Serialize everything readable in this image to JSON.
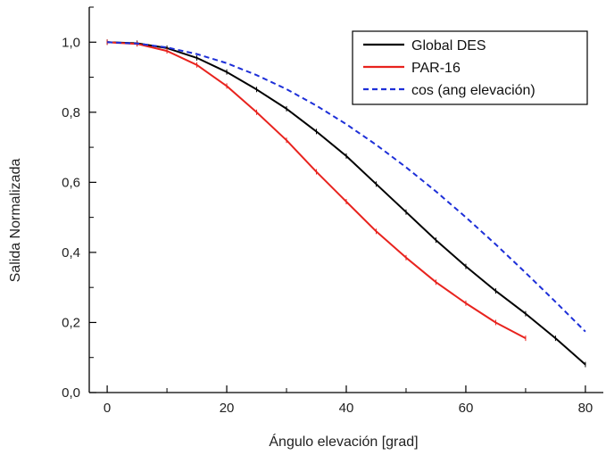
{
  "chart_data": {
    "type": "line",
    "title": "",
    "xlabel": "Ángulo elevación [grad]",
    "ylabel": "Salida Normalizada",
    "xlim": [
      -3,
      83
    ],
    "ylim": [
      0,
      1.1
    ],
    "xticks": [
      0,
      20,
      40,
      60,
      80
    ],
    "xtick_labels": [
      "0",
      "20",
      "40",
      "60",
      "80"
    ],
    "yticks": [
      0,
      0.2,
      0.4,
      0.6,
      0.8,
      1.0
    ],
    "ytick_labels": [
      "0,0",
      "0,2",
      "0,4",
      "0,6",
      "0,8",
      "1,0"
    ],
    "grid": false,
    "legend_position": "top-right",
    "series": [
      {
        "name": "Global DES",
        "color": "#000000",
        "style": "solid",
        "x": [
          0,
          5,
          10,
          15,
          20,
          25,
          30,
          35,
          40,
          45,
          50,
          55,
          60,
          65,
          70,
          75,
          80
        ],
        "y": [
          1.0,
          0.997,
          0.983,
          0.955,
          0.915,
          0.865,
          0.81,
          0.745,
          0.675,
          0.595,
          0.515,
          0.435,
          0.36,
          0.29,
          0.225,
          0.155,
          0.08
        ]
      },
      {
        "name": "PAR-16",
        "color": "#e8231e",
        "style": "solid",
        "x": [
          0,
          5,
          10,
          15,
          20,
          25,
          30,
          35,
          40,
          45,
          50,
          55,
          60,
          65,
          70
        ],
        "y": [
          1.0,
          0.995,
          0.975,
          0.935,
          0.875,
          0.8,
          0.72,
          0.63,
          0.545,
          0.46,
          0.385,
          0.315,
          0.255,
          0.2,
          0.155
        ]
      },
      {
        "name": "cos (ang elevación)",
        "color": "#1d2fd8",
        "style": "dashed",
        "x": [
          0,
          5,
          10,
          15,
          20,
          25,
          30,
          35,
          40,
          45,
          50,
          55,
          60,
          65,
          70,
          75,
          80
        ],
        "y": [
          1.0,
          0.996,
          0.985,
          0.966,
          0.94,
          0.906,
          0.866,
          0.819,
          0.766,
          0.707,
          0.643,
          0.574,
          0.5,
          0.423,
          0.342,
          0.259,
          0.174
        ]
      }
    ]
  }
}
